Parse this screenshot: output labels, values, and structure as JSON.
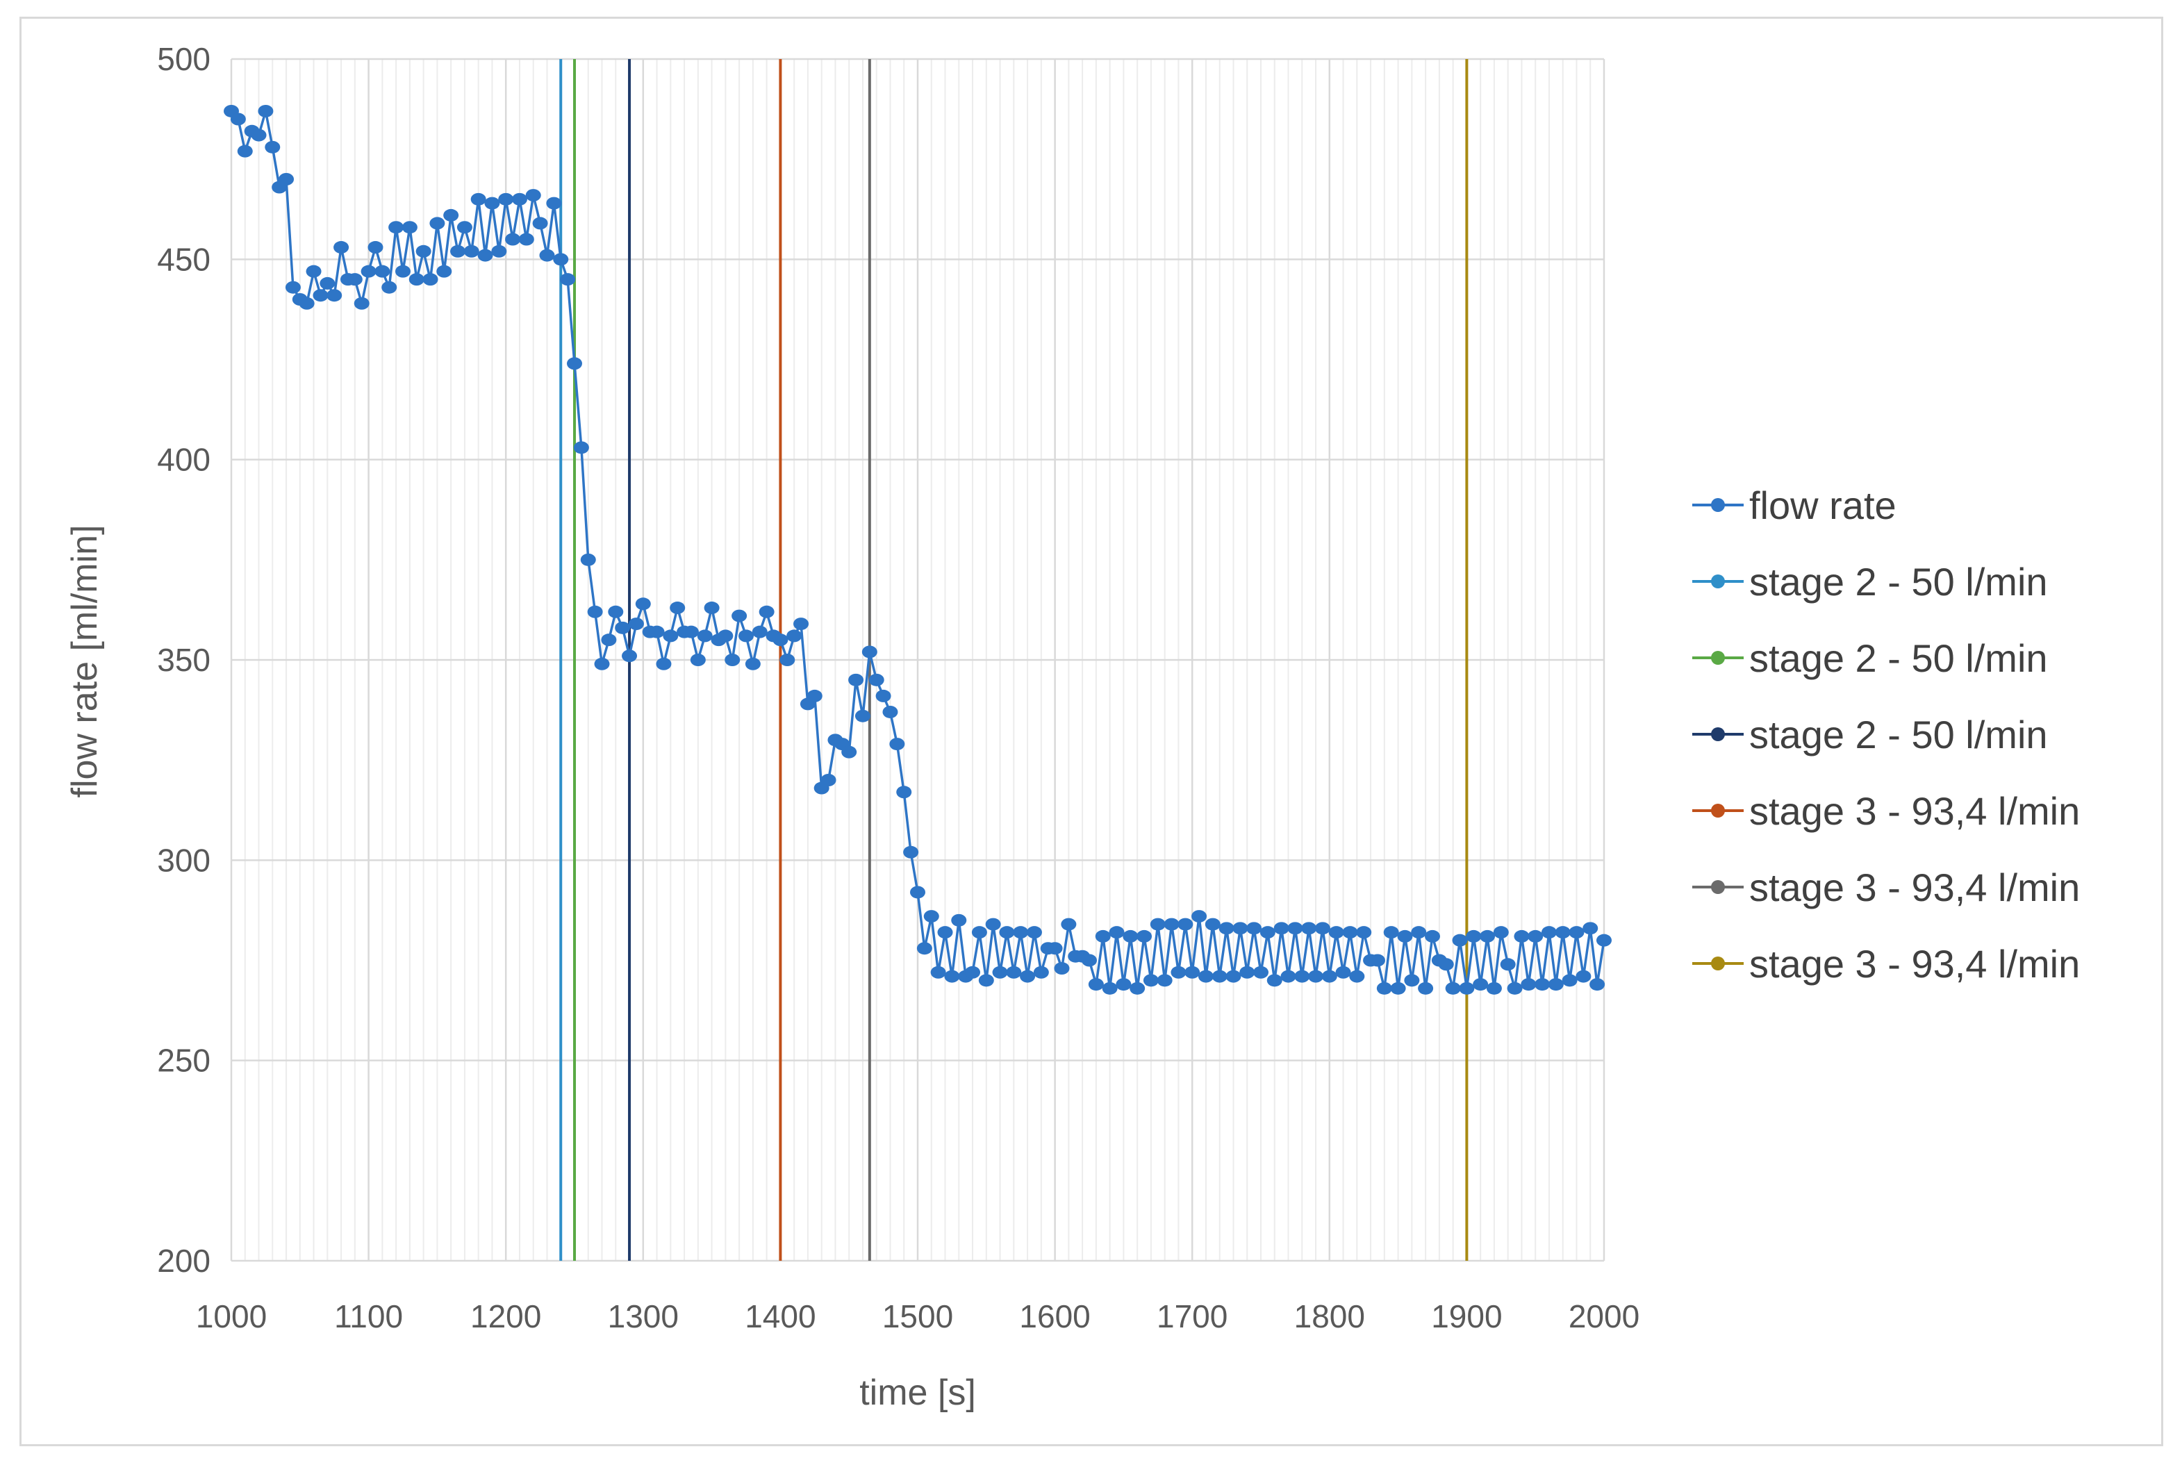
{
  "chart_data": {
    "type": "line",
    "xlabel": "time [s]",
    "ylabel": "flow rate [ml/min]",
    "xlim": [
      1000,
      2000
    ],
    "ylim": [
      200,
      500
    ],
    "x_ticks": [
      1000,
      1100,
      1200,
      1300,
      1400,
      1500,
      1600,
      1700,
      1800,
      1900,
      2000
    ],
    "y_ticks": [
      200,
      250,
      300,
      350,
      400,
      450,
      500
    ],
    "x_minor_step": 10,
    "grid": true,
    "legend_position": "right",
    "series": [
      {
        "name": "flow rate",
        "color": "#2e75c6",
        "marker": "circle",
        "x": [
          1000,
          1005,
          1010,
          1015,
          1020,
          1025,
          1030,
          1035,
          1040,
          1045,
          1050,
          1055,
          1060,
          1065,
          1070,
          1075,
          1080,
          1085,
          1090,
          1095,
          1100,
          1105,
          1110,
          1115,
          1120,
          1125,
          1130,
          1135,
          1140,
          1145,
          1150,
          1155,
          1160,
          1165,
          1170,
          1175,
          1180,
          1185,
          1190,
          1195,
          1200,
          1205,
          1210,
          1215,
          1220,
          1225,
          1230,
          1235,
          1240,
          1245,
          1250,
          1255,
          1260,
          1265,
          1270,
          1275,
          1280,
          1285,
          1290,
          1295,
          1300,
          1305,
          1310,
          1315,
          1320,
          1325,
          1330,
          1335,
          1340,
          1345,
          1350,
          1355,
          1360,
          1365,
          1370,
          1375,
          1380,
          1385,
          1390,
          1395,
          1400,
          1405,
          1410,
          1415,
          1420,
          1425,
          1430,
          1435,
          1440,
          1445,
          1450,
          1455,
          1460,
          1465,
          1470,
          1475,
          1480,
          1485,
          1490,
          1495,
          1500,
          1505,
          1510,
          1515,
          1520,
          1525,
          1530,
          1535,
          1540,
          1545,
          1550,
          1555,
          1560,
          1565,
          1570,
          1575,
          1580,
          1585,
          1590,
          1595,
          1600,
          1605,
          1610,
          1615,
          1620,
          1625,
          1630,
          1635,
          1640,
          1645,
          1650,
          1655,
          1660,
          1665,
          1670,
          1675,
          1680,
          1685,
          1690,
          1695,
          1700,
          1705,
          1710,
          1715,
          1720,
          1725,
          1730,
          1735,
          1740,
          1745,
          1750,
          1755,
          1760,
          1765,
          1770,
          1775,
          1780,
          1785,
          1790,
          1795,
          1800,
          1805,
          1810,
          1815,
          1820,
          1825,
          1830,
          1835,
          1840,
          1845,
          1850,
          1855,
          1860,
          1865,
          1870,
          1875,
          1880,
          1885,
          1890,
          1895,
          1900,
          1905,
          1910,
          1915,
          1920,
          1925,
          1930,
          1935,
          1940,
          1945,
          1950,
          1955,
          1960,
          1965,
          1970,
          1975,
          1980,
          1985,
          1990,
          1995,
          2000
        ],
        "y": [
          487,
          485,
          477,
          482,
          481,
          487,
          478,
          468,
          470,
          443,
          440,
          439,
          447,
          441,
          444,
          441,
          453,
          445,
          445,
          439,
          447,
          453,
          447,
          443,
          458,
          447,
          458,
          445,
          452,
          445,
          459,
          447,
          461,
          452,
          458,
          452,
          465,
          451,
          464,
          452,
          465,
          455,
          465,
          455,
          466,
          459,
          451,
          464,
          450,
          445,
          424,
          403,
          375,
          362,
          349,
          355,
          362,
          358,
          351,
          359,
          364,
          357,
          357,
          349,
          356,
          363,
          357,
          357,
          350,
          356,
          363,
          355,
          356,
          350,
          361,
          356,
          349,
          357,
          362,
          356,
          355,
          350,
          356,
          359,
          339,
          341,
          318,
          320,
          330,
          329,
          327,
          345,
          336,
          352,
          345,
          341,
          337,
          329,
          317,
          302,
          292,
          278,
          286,
          272,
          282,
          271,
          285,
          271,
          272,
          282,
          270,
          284,
          272,
          282,
          272,
          282,
          271,
          282,
          272,
          278,
          278,
          273,
          284,
          276,
          276,
          275,
          269,
          281,
          268,
          282,
          269,
          281,
          268,
          281,
          270,
          284,
          270,
          284,
          272,
          284,
          272,
          286,
          271,
          284,
          271,
          283,
          271,
          283,
          272,
          283,
          272,
          282,
          270,
          283,
          271,
          283,
          271,
          283,
          271,
          283,
          271,
          282,
          272,
          282,
          271,
          282,
          275,
          275,
          268,
          282,
          268,
          281,
          270,
          282,
          268,
          281,
          275,
          274,
          268,
          280,
          268,
          281,
          269,
          281,
          268,
          282,
          274,
          268,
          281,
          269,
          281,
          269,
          282,
          269,
          282,
          270,
          282,
          271,
          283,
          269,
          280
        ]
      },
      {
        "name": "stage 2 - 50 l/min",
        "color": "#2f8fc9",
        "x": 1240
      },
      {
        "name": "stage 2 - 50 l/min",
        "color": "#5aa945",
        "x": 1250
      },
      {
        "name": "stage 2 - 50 l/min",
        "color": "#1f3b6b",
        "x": 1290
      },
      {
        "name": "stage 3 - 93,4 l/min",
        "color": "#c0501a",
        "x": 1400
      },
      {
        "name": "stage 3 - 93,4 l/min",
        "color": "#6b6b6b",
        "x": 1465
      },
      {
        "name": "stage 3 - 93,4 l/min",
        "color": "#a88a12",
        "x": 1900
      }
    ]
  }
}
